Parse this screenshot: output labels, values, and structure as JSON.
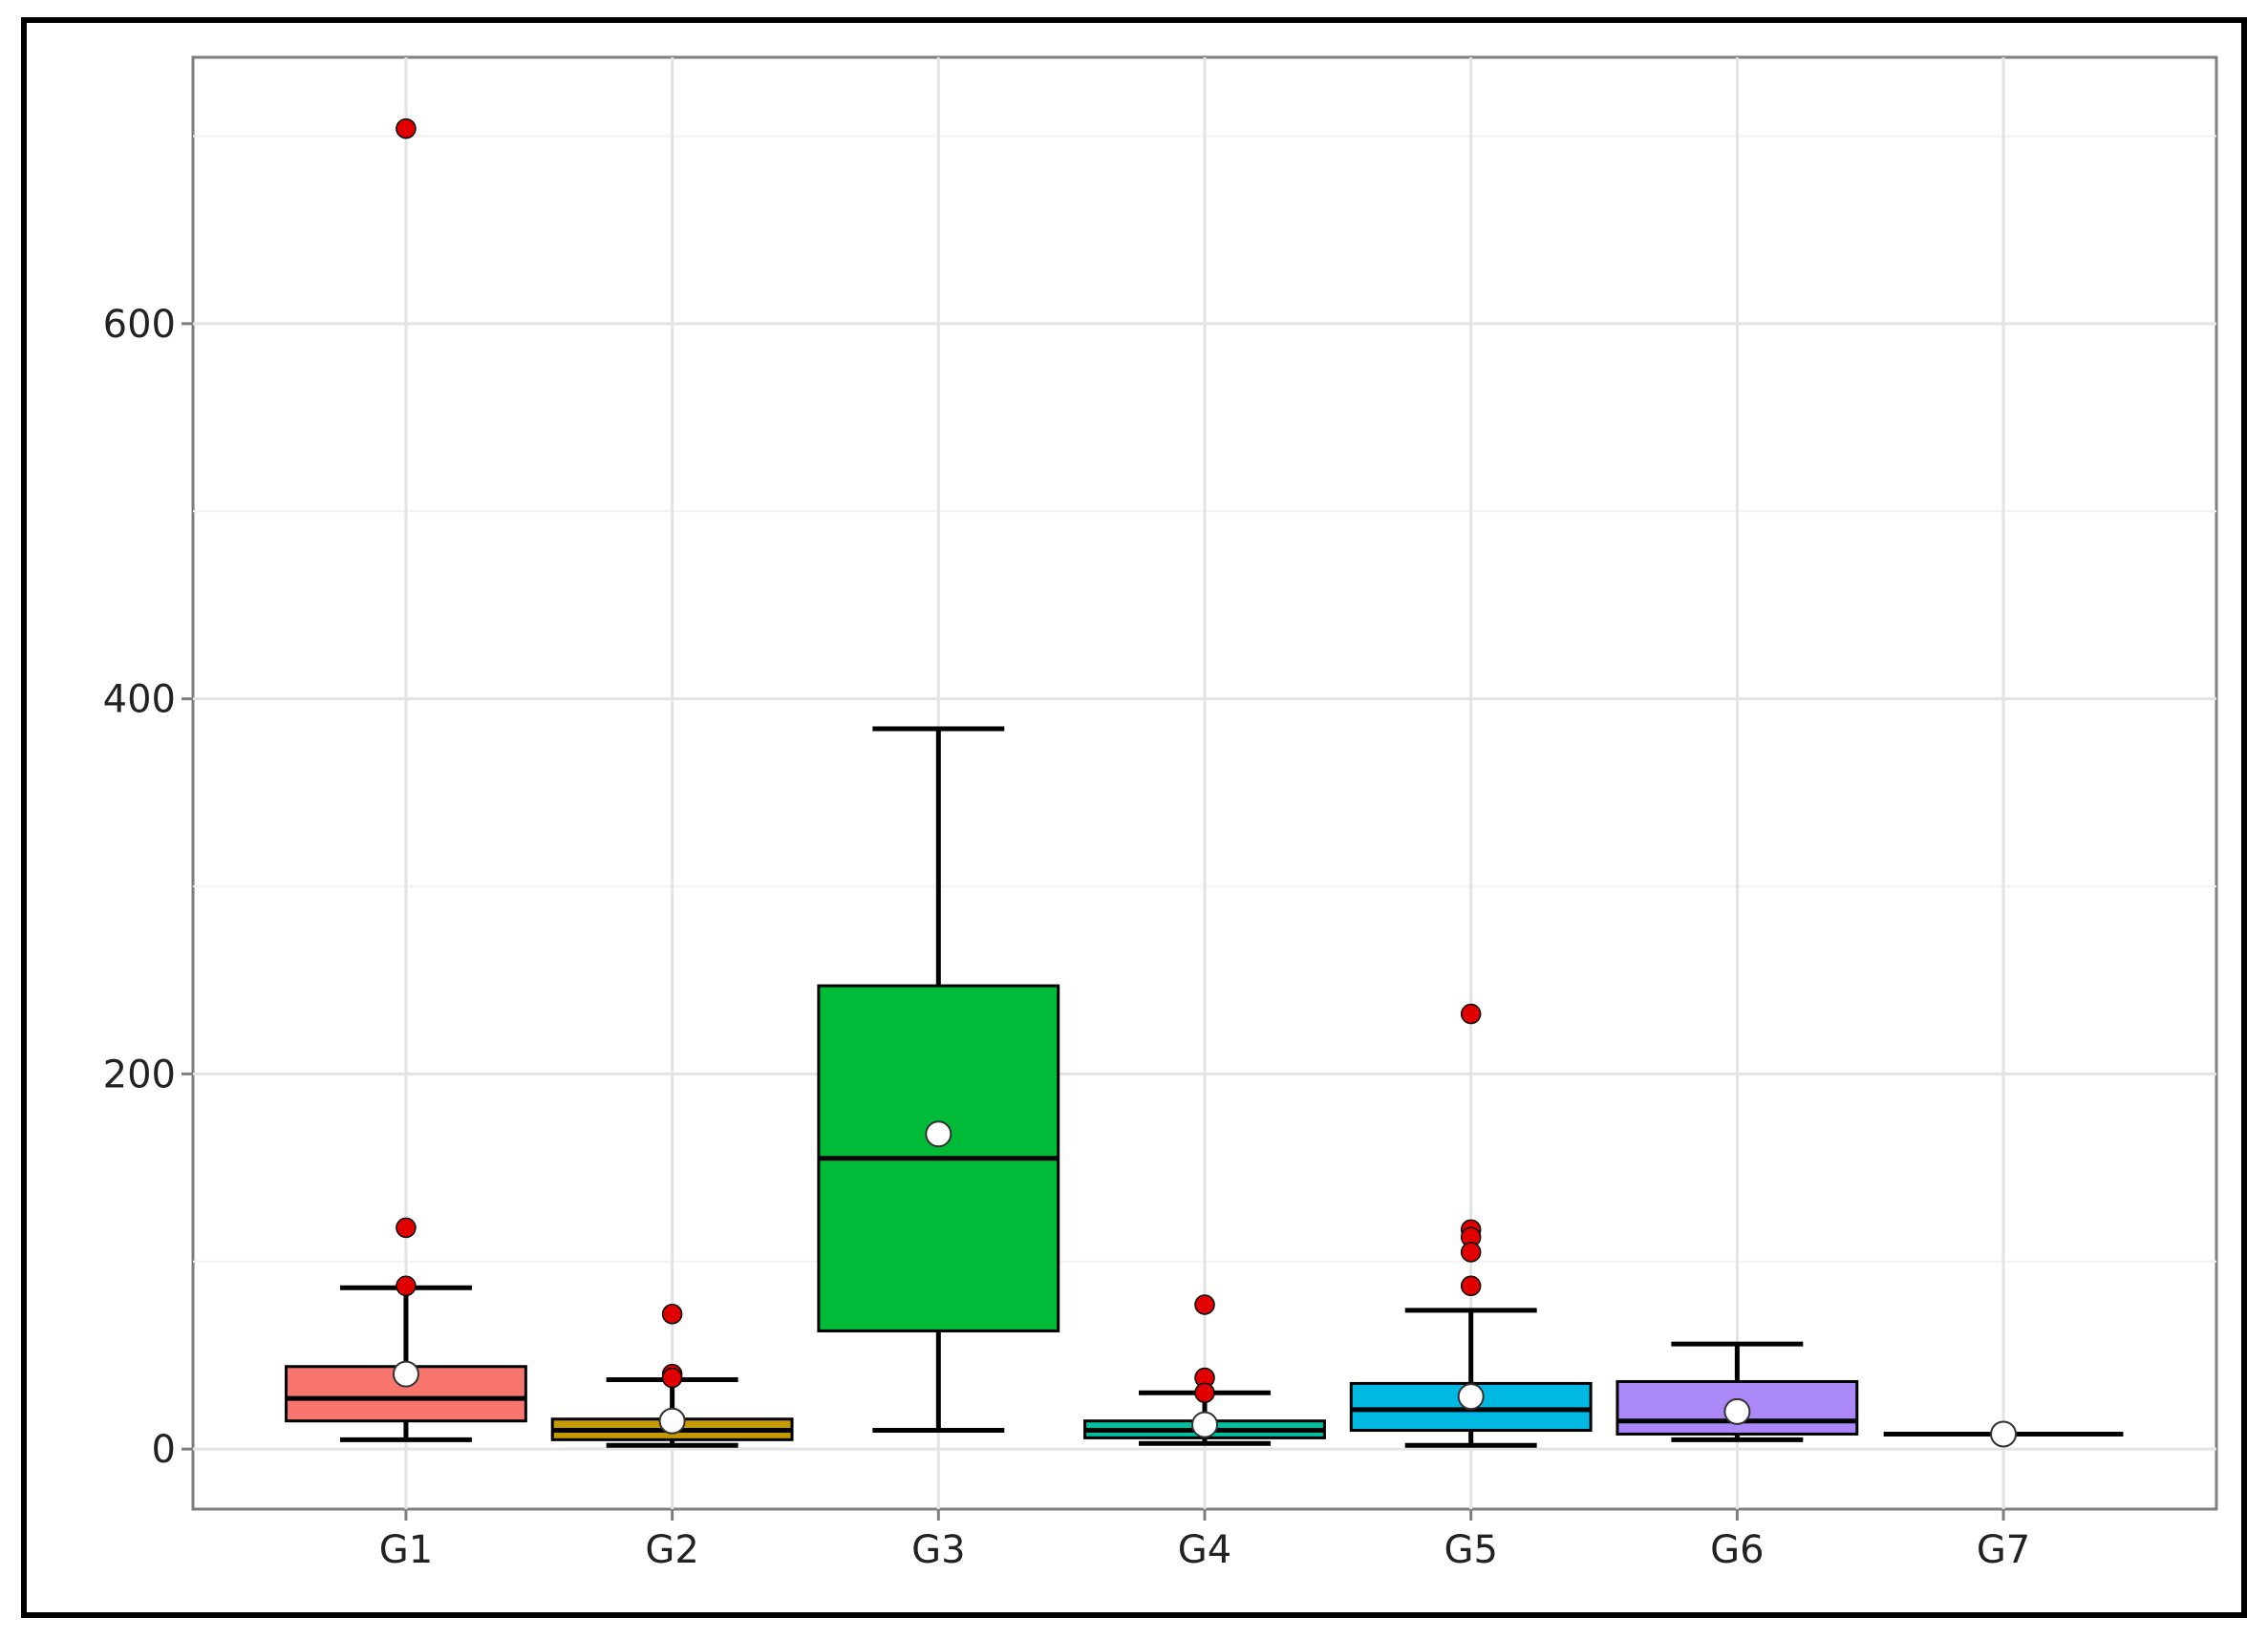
{
  "chart_data": {
    "type": "boxplot",
    "title": "",
    "xlabel": "",
    "ylabel": "",
    "ylim": [
      -32,
      742
    ],
    "yticks": [
      0,
      200,
      400,
      600
    ],
    "grid": true,
    "legend": "none",
    "categories": [
      "G1",
      "G2",
      "G3",
      "G4",
      "G5",
      "G6",
      "G7"
    ],
    "boxes": [
      {
        "name": "G1",
        "color": "#F8766D",
        "whisker_low": 5,
        "q1": 15,
        "median": 27,
        "q3": 44,
        "whisker_high": 86,
        "mean": 40,
        "outliers": [
          704,
          118,
          87
        ]
      },
      {
        "name": "G2",
        "color": "#C49A00",
        "whisker_low": 2,
        "q1": 5,
        "median": 10,
        "q3": 16,
        "whisker_high": 37,
        "mean": 15,
        "outliers": [
          72,
          40,
          38
        ]
      },
      {
        "name": "G3",
        "color": "#00BA38",
        "whisker_low": 10,
        "q1": 63,
        "median": 155,
        "q3": 247,
        "whisker_high": 384,
        "mean": 168,
        "outliers": []
      },
      {
        "name": "G4",
        "color": "#00C19F",
        "whisker_low": 3,
        "q1": 6,
        "median": 10,
        "q3": 15,
        "whisker_high": 30,
        "mean": 13,
        "outliers": [
          77,
          38,
          30
        ]
      },
      {
        "name": "G5",
        "color": "#00B9E3",
        "whisker_low": 2,
        "q1": 10,
        "median": 21,
        "q3": 35,
        "whisker_high": 74,
        "mean": 28,
        "outliers": [
          232,
          117,
          113,
          105,
          87
        ]
      },
      {
        "name": "G6",
        "color": "#AA88F8",
        "whisker_low": 5,
        "q1": 8,
        "median": 15,
        "q3": 36,
        "whisker_high": 56,
        "mean": 20,
        "outliers": []
      },
      {
        "name": "G7",
        "color": "#F564E3",
        "whisker_low": 8,
        "q1": 8,
        "median": 8,
        "q3": 8,
        "whisker_high": 8,
        "mean": 8,
        "outliers": []
      }
    ],
    "outlier_color": "#E00000",
    "mean_marker_color": "#FFFFFF"
  }
}
